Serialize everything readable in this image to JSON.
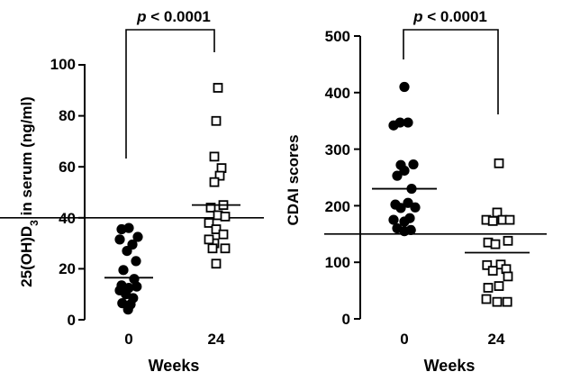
{
  "chart_data": [
    {
      "type": "scatter",
      "ylabel": "25(OH)D3 in serum (ng/ml)",
      "ylabel_parts": {
        "pre": "25(OH)D",
        "sub": "3",
        "post": " in serum (ng/ml)"
      },
      "xlabel": "Weeks",
      "categories": [
        "0",
        "24"
      ],
      "ylim": [
        0,
        100
      ],
      "yticks": [
        0,
        20,
        40,
        60,
        80,
        100
      ],
      "ytick_labels": [
        "0",
        "20",
        "40",
        "60",
        "80",
        "100"
      ],
      "reference_line": 40,
      "significance": {
        "p_letter": "p",
        "p_rest": " < 0.0001"
      },
      "series": [
        {
          "name": "0",
          "marker": "filled-circle",
          "mean": 16.5,
          "points": [
            [
              -0.2,
              35.5
            ],
            [
              0,
              36
            ],
            [
              0.25,
              32.5
            ],
            [
              -0.25,
              31.5
            ],
            [
              0.1,
              29.5
            ],
            [
              -0.05,
              27
            ],
            [
              0.2,
              23
            ],
            [
              -0.15,
              19.5
            ],
            [
              0.15,
              16
            ],
            [
              -0.2,
              13.5
            ],
            [
              0,
              12.5
            ],
            [
              0.22,
              13
            ],
            [
              -0.25,
              11.5
            ],
            [
              -0.08,
              10
            ],
            [
              0.12,
              8.5
            ],
            [
              0.05,
              6
            ],
            [
              -0.18,
              6.5
            ],
            [
              -0.02,
              4
            ]
          ]
        },
        {
          "name": "24",
          "marker": "open-square",
          "mean": 45,
          "points": [
            [
              0.05,
              91
            ],
            [
              0,
              78
            ],
            [
              -0.05,
              64
            ],
            [
              0.15,
              59.5
            ],
            [
              0.1,
              56.5
            ],
            [
              -0.05,
              54
            ],
            [
              0.2,
              45
            ],
            [
              -0.15,
              44
            ],
            [
              0.05,
              41
            ],
            [
              0.25,
              40.5
            ],
            [
              -0.2,
              38
            ],
            [
              0,
              35.5
            ],
            [
              0.2,
              33.5
            ],
            [
              -0.05,
              30
            ],
            [
              -0.2,
              31.5
            ],
            [
              0.25,
              28
            ],
            [
              -0.1,
              28
            ],
            [
              0,
              22
            ]
          ]
        }
      ]
    },
    {
      "type": "scatter",
      "ylabel": "CDAI scores",
      "xlabel": "Weeks",
      "categories": [
        "0",
        "24"
      ],
      "ylim": [
        0,
        500
      ],
      "yticks": [
        0,
        100,
        200,
        300,
        400,
        500
      ],
      "ytick_labels": [
        "0",
        "100",
        "200",
        "300",
        "400",
        "500"
      ],
      "reference_line": 150,
      "significance": {
        "p_letter": "p",
        "p_rest": " < 0.0001"
      },
      "series": [
        {
          "name": "0",
          "marker": "filled-circle",
          "mean": 230,
          "points": [
            [
              0,
              410
            ],
            [
              -0.12,
              347
            ],
            [
              0.1,
              347
            ],
            [
              -0.3,
              342
            ],
            [
              -0.1,
              272
            ],
            [
              0.25,
              273
            ],
            [
              0,
              262
            ],
            [
              -0.2,
              253
            ],
            [
              0.2,
              230
            ],
            [
              -0.25,
              202
            ],
            [
              0.1,
              205
            ],
            [
              -0.1,
              196
            ],
            [
              0.3,
              197
            ],
            [
              -0.3,
              175
            ],
            [
              0.15,
              178
            ],
            [
              0,
              172
            ],
            [
              -0.2,
              160
            ],
            [
              0.18,
              157
            ],
            [
              0,
              155
            ]
          ]
        },
        {
          "name": "24",
          "marker": "open-square",
          "mean": 117,
          "points": [
            [
              0.05,
              275
            ],
            [
              0,
              188
            ],
            [
              -0.3,
              175
            ],
            [
              -0.12,
              173
            ],
            [
              0.15,
              175
            ],
            [
              0.35,
              175
            ],
            [
              -0.25,
              135
            ],
            [
              -0.05,
              132
            ],
            [
              0.3,
              138
            ],
            [
              -0.28,
              95
            ],
            [
              0.1,
              96
            ],
            [
              0.25,
              88
            ],
            [
              -0.12,
              85
            ],
            [
              0.3,
              75
            ],
            [
              -0.25,
              55
            ],
            [
              0.05,
              58
            ],
            [
              -0.3,
              35
            ],
            [
              0,
              30
            ],
            [
              0.28,
              30
            ]
          ]
        }
      ]
    }
  ]
}
